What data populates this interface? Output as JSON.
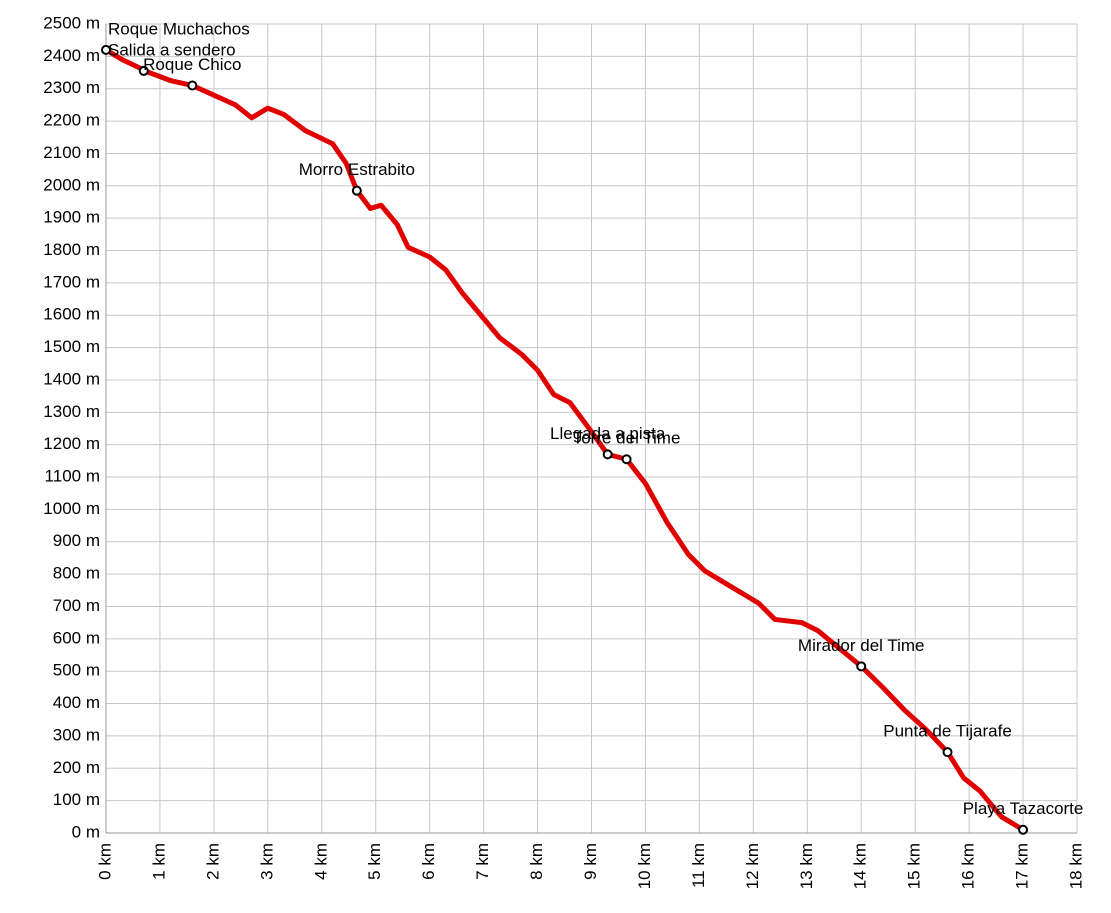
{
  "chart_data": {
    "type": "line",
    "x": [
      0,
      0.3,
      0.8,
      1.2,
      1.6,
      2.0,
      2.4,
      2.7,
      3.0,
      3.3,
      3.7,
      4.2,
      4.45,
      4.65,
      4.9,
      5.1,
      5.4,
      5.6,
      6.0,
      6.3,
      6.6,
      7.0,
      7.3,
      7.7,
      8.0,
      8.3,
      8.6,
      9.0,
      9.3,
      9.65,
      10.0,
      10.4,
      10.8,
      11.1,
      11.6,
      12.1,
      12.4,
      12.9,
      13.2,
      13.6,
      14.0,
      14.4,
      14.8,
      15.2,
      15.6,
      15.9,
      16.2,
      16.6,
      17.0
    ],
    "series": [
      {
        "color": "#e00000",
        "values": [
          2420,
          2390,
          2350,
          2325,
          2310,
          2280,
          2250,
          2210,
          2240,
          2220,
          2170,
          2130,
          2070,
          1985,
          1930,
          1940,
          1880,
          1810,
          1780,
          1740,
          1670,
          1590,
          1530,
          1480,
          1430,
          1355,
          1330,
          1240,
          1170,
          1155,
          1080,
          960,
          860,
          810,
          760,
          710,
          660,
          650,
          625,
          570,
          515,
          450,
          380,
          320,
          250,
          170,
          130,
          50,
          10
        ]
      }
    ],
    "annotations": [
      {
        "text": "Roque Muchachos",
        "x": 0,
        "y": 2420
      },
      {
        "text": "Salida a sendero",
        "x": 0.7,
        "y": 2355
      },
      {
        "text": "Roque Chico",
        "x": 1.6,
        "y": 2310
      },
      {
        "text": "Morro Estrabito",
        "x": 4.65,
        "y": 1985
      },
      {
        "text": "Llegada a pista",
        "x": 9.3,
        "y": 1170
      },
      {
        "text": "Torre del Time",
        "x": 9.65,
        "y": 1155
      },
      {
        "text": "Mirador del Time",
        "x": 14.0,
        "y": 515
      },
      {
        "text": "Punta de Tijarafe",
        "x": 15.6,
        "y": 250
      },
      {
        "text": "Playa Tazacorte",
        "x": 17.0,
        "y": 10
      }
    ],
    "xlim": [
      0,
      18
    ],
    "xticks": [
      {
        "value": 0,
        "label": "0 km"
      },
      {
        "value": 1,
        "label": "1 km"
      },
      {
        "value": 2,
        "label": "2 km"
      },
      {
        "value": 3,
        "label": "3 km"
      },
      {
        "value": 4,
        "label": "4 km"
      },
      {
        "value": 5,
        "label": "5 km"
      },
      {
        "value": 6,
        "label": "6 km"
      },
      {
        "value": 7,
        "label": "7 km"
      },
      {
        "value": 8,
        "label": "8 km"
      },
      {
        "value": 9,
        "label": "9 km"
      },
      {
        "value": 10,
        "label": "10 km"
      },
      {
        "value": 11,
        "label": "11 km"
      },
      {
        "value": 12,
        "label": "12 km"
      },
      {
        "value": 13,
        "label": "13 km"
      },
      {
        "value": 14,
        "label": "14 km"
      },
      {
        "value": 15,
        "label": "15 km"
      },
      {
        "value": 16,
        "label": "16 km"
      },
      {
        "value": 17,
        "label": "17 km"
      },
      {
        "value": 18,
        "label": "18 km"
      }
    ],
    "ylim": [
      0,
      2500
    ],
    "yticks": [
      {
        "value": 0,
        "label": "0 m"
      },
      {
        "value": 100,
        "label": "100 m"
      },
      {
        "value": 200,
        "label": "200 m"
      },
      {
        "value": 300,
        "label": "300 m"
      },
      {
        "value": 400,
        "label": "400 m"
      },
      {
        "value": 500,
        "label": "500 m"
      },
      {
        "value": 600,
        "label": "600 m"
      },
      {
        "value": 700,
        "label": "700 m"
      },
      {
        "value": 800,
        "label": "800 m"
      },
      {
        "value": 900,
        "label": "900 m"
      },
      {
        "value": 1000,
        "label": "1000 m"
      },
      {
        "value": 1100,
        "label": "1100 m"
      },
      {
        "value": 1200,
        "label": "1200 m"
      },
      {
        "value": 1300,
        "label": "1300 m"
      },
      {
        "value": 1400,
        "label": "1400 m"
      },
      {
        "value": 1500,
        "label": "1500 m"
      },
      {
        "value": 1600,
        "label": "1600 m"
      },
      {
        "value": 1700,
        "label": "1700 m"
      },
      {
        "value": 1800,
        "label": "1800 m"
      },
      {
        "value": 1900,
        "label": "1900 m"
      },
      {
        "value": 2000,
        "label": "2000 m"
      },
      {
        "value": 2100,
        "label": "2100 m"
      },
      {
        "value": 2200,
        "label": "2200 m"
      },
      {
        "value": 2300,
        "label": "2300 m"
      },
      {
        "value": 2400,
        "label": "2400 m"
      },
      {
        "value": 2500,
        "label": "2500 m"
      }
    ],
    "grid": true
  }
}
